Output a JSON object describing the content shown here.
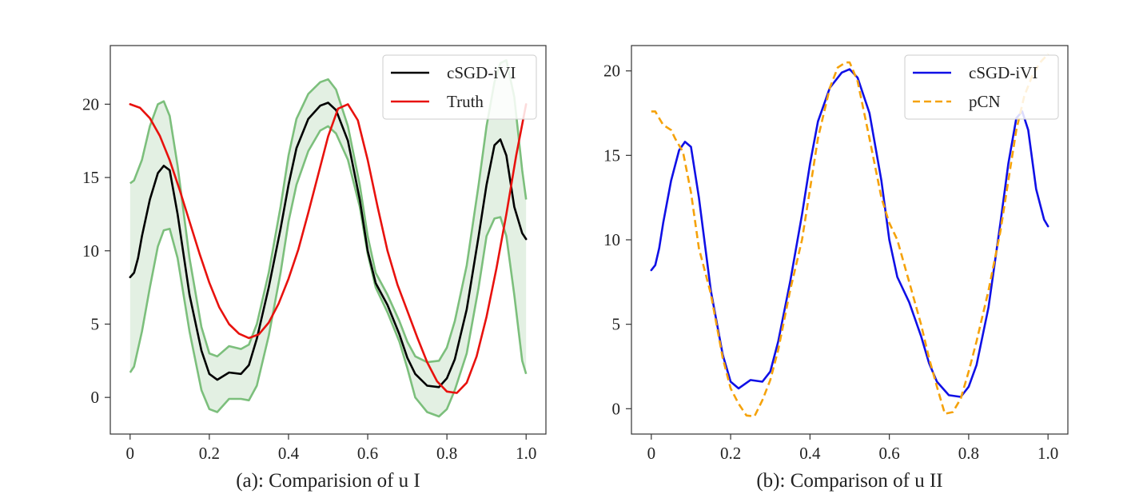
{
  "chart_data": [
    {
      "type": "line",
      "caption": "(a): Comparision of u I",
      "xlim": [
        -0.05,
        1.05
      ],
      "ylim": [
        -2.5,
        24.0
      ],
      "xticks": [
        0,
        0.2,
        0.4,
        0.6,
        0.8,
        1.0
      ],
      "xtick_labels": [
        "0",
        "0.2",
        "0.4",
        "0.6",
        "0.8",
        "1.0"
      ],
      "yticks": [
        0,
        5,
        10,
        15,
        20
      ],
      "ytick_labels": [
        "0",
        "5",
        "10",
        "15",
        "20"
      ],
      "grid": false,
      "legend_position": "top-right",
      "series": [
        {
          "name": "cSGD-iVI",
          "color": "#000000",
          "style": "solid",
          "x": [
            0,
            0.01,
            0.02,
            0.03,
            0.05,
            0.07,
            0.085,
            0.1,
            0.12,
            0.15,
            0.18,
            0.2,
            0.22,
            0.25,
            0.28,
            0.3,
            0.32,
            0.35,
            0.38,
            0.4,
            0.42,
            0.45,
            0.48,
            0.5,
            0.52,
            0.55,
            0.58,
            0.6,
            0.62,
            0.65,
            0.68,
            0.7,
            0.72,
            0.75,
            0.78,
            0.8,
            0.82,
            0.85,
            0.88,
            0.9,
            0.92,
            0.935,
            0.95,
            0.97,
            0.99,
            1.0
          ],
          "y": [
            8.2,
            8.5,
            9.5,
            11.0,
            13.5,
            15.3,
            15.8,
            15.5,
            12.5,
            7.0,
            3.2,
            1.6,
            1.2,
            1.7,
            1.6,
            2.2,
            4.0,
            7.5,
            11.5,
            14.5,
            17.0,
            19.0,
            19.9,
            20.1,
            19.6,
            17.5,
            13.5,
            10.0,
            7.8,
            6.3,
            4.3,
            2.7,
            1.6,
            0.8,
            0.7,
            1.3,
            2.6,
            6.0,
            11.0,
            14.5,
            17.2,
            17.6,
            16.5,
            13.0,
            11.2,
            10.8
          ]
        },
        {
          "name": "Truth",
          "color": "#e8120e",
          "style": "solid",
          "x": [
            0,
            0.025,
            0.05,
            0.075,
            0.1,
            0.125,
            0.15,
            0.175,
            0.2,
            0.225,
            0.25,
            0.275,
            0.3,
            0.325,
            0.35,
            0.375,
            0.4,
            0.425,
            0.45,
            0.475,
            0.5,
            0.525,
            0.55,
            0.575,
            0.6,
            0.625,
            0.65,
            0.675,
            0.7,
            0.725,
            0.75,
            0.775,
            0.8,
            0.825,
            0.85,
            0.875,
            0.9,
            0.925,
            0.95,
            0.975,
            1.0
          ],
          "y": [
            20,
            19.75,
            19.05,
            17.85,
            16.18,
            14.17,
            12.0,
            9.83,
            7.82,
            6.15,
            5.0,
            4.35,
            4.05,
            4.3,
            5.1,
            6.4,
            8.1,
            10.1,
            12.6,
            15.2,
            17.8,
            19.7,
            20.0,
            18.9,
            16.2,
            13.0,
            10.0,
            7.7,
            5.9,
            4.1,
            2.4,
            1.1,
            0.4,
            0.3,
            1.0,
            2.8,
            5.5,
            8.8,
            12.5,
            16.5,
            20.0
          ]
        }
      ],
      "band": {
        "color": "#7cbf7c",
        "fill": "#e3f0e3",
        "x": [
          0,
          0.01,
          0.03,
          0.05,
          0.07,
          0.085,
          0.1,
          0.12,
          0.15,
          0.18,
          0.2,
          0.22,
          0.25,
          0.28,
          0.3,
          0.32,
          0.35,
          0.38,
          0.4,
          0.42,
          0.45,
          0.48,
          0.5,
          0.52,
          0.55,
          0.58,
          0.6,
          0.62,
          0.65,
          0.68,
          0.7,
          0.72,
          0.75,
          0.78,
          0.8,
          0.82,
          0.85,
          0.88,
          0.9,
          0.92,
          0.935,
          0.95,
          0.97,
          0.99,
          1.0
        ],
        "upper": [
          14.6,
          14.8,
          16.2,
          18.5,
          20.0,
          20.2,
          19.2,
          15.8,
          9.5,
          4.8,
          3.0,
          2.8,
          3.5,
          3.3,
          3.6,
          5.0,
          8.5,
          13.0,
          16.5,
          19.0,
          20.7,
          21.5,
          21.7,
          21.0,
          18.5,
          14.5,
          11.0,
          8.5,
          7.0,
          5.2,
          3.8,
          2.8,
          2.4,
          2.5,
          3.4,
          5.2,
          9.0,
          14.5,
          18.5,
          21.5,
          22.8,
          23.0,
          20.5,
          15.5,
          13.5
        ],
        "lower": [
          1.7,
          2.1,
          4.5,
          7.5,
          10.3,
          11.4,
          11.5,
          9.5,
          4.5,
          0.5,
          -0.8,
          -1.0,
          -0.1,
          -0.1,
          -0.2,
          0.8,
          4.2,
          8.5,
          12.0,
          14.5,
          16.8,
          18.2,
          18.5,
          18.0,
          16.2,
          13.0,
          9.8,
          7.5,
          5.8,
          3.8,
          2.0,
          0.0,
          -1.0,
          -1.3,
          -0.8,
          0.5,
          3.0,
          7.5,
          11.0,
          12.2,
          12.3,
          11.0,
          7.0,
          2.5,
          1.6
        ]
      }
    },
    {
      "type": "line",
      "caption": "(b): Comparison of u II",
      "xlim": [
        -0.05,
        1.05
      ],
      "ylim": [
        -1.5,
        21.5
      ],
      "xticks": [
        0,
        0.2,
        0.4,
        0.6,
        0.8,
        1.0
      ],
      "xtick_labels": [
        "0",
        "0.2",
        "0.4",
        "0.6",
        "0.8",
        "1.0"
      ],
      "yticks": [
        0,
        5,
        10,
        15,
        20
      ],
      "ytick_labels": [
        "0",
        "5",
        "10",
        "15",
        "20"
      ],
      "grid": false,
      "legend_position": "top-right",
      "series": [
        {
          "name": "cSGD-iVI",
          "color": "#1010e6",
          "style": "solid",
          "x": [
            0,
            0.01,
            0.02,
            0.03,
            0.05,
            0.07,
            0.085,
            0.1,
            0.12,
            0.15,
            0.18,
            0.2,
            0.22,
            0.25,
            0.28,
            0.3,
            0.32,
            0.35,
            0.38,
            0.4,
            0.42,
            0.45,
            0.48,
            0.5,
            0.52,
            0.55,
            0.58,
            0.6,
            0.62,
            0.65,
            0.68,
            0.7,
            0.72,
            0.75,
            0.78,
            0.8,
            0.82,
            0.85,
            0.88,
            0.9,
            0.92,
            0.935,
            0.95,
            0.97,
            0.99,
            1.0
          ],
          "y": [
            8.2,
            8.5,
            9.5,
            11.0,
            13.5,
            15.3,
            15.8,
            15.5,
            12.5,
            7.0,
            3.2,
            1.6,
            1.2,
            1.7,
            1.6,
            2.2,
            4.0,
            7.5,
            11.5,
            14.5,
            17.0,
            19.0,
            19.9,
            20.1,
            19.6,
            17.5,
            13.5,
            10.0,
            7.8,
            6.3,
            4.3,
            2.7,
            1.6,
            0.8,
            0.7,
            1.3,
            2.6,
            6.0,
            11.0,
            14.5,
            17.2,
            17.6,
            16.5,
            13.0,
            11.2,
            10.8
          ]
        },
        {
          "name": "pCN",
          "color": "#f5a20a",
          "style": "dashed",
          "x": [
            0,
            0.01,
            0.02,
            0.03,
            0.05,
            0.06,
            0.08,
            0.1,
            0.12,
            0.15,
            0.18,
            0.2,
            0.22,
            0.24,
            0.26,
            0.28,
            0.3,
            0.32,
            0.35,
            0.38,
            0.4,
            0.42,
            0.45,
            0.47,
            0.49,
            0.5,
            0.52,
            0.55,
            0.58,
            0.6,
            0.62,
            0.65,
            0.68,
            0.7,
            0.72,
            0.74,
            0.76,
            0.78,
            0.8,
            0.82,
            0.85,
            0.88,
            0.9,
            0.92,
            0.94,
            0.96,
            0.98,
            1.0
          ],
          "y": [
            17.6,
            17.6,
            17.2,
            16.8,
            16.5,
            16.0,
            15.2,
            12.8,
            9.5,
            6.8,
            3.0,
            1.2,
            0.3,
            -0.4,
            -0.45,
            0.5,
            1.7,
            3.5,
            7.0,
            10.0,
            13.0,
            16.0,
            19.0,
            20.2,
            20.5,
            20.5,
            19.4,
            16.0,
            12.5,
            11.0,
            10.0,
            7.5,
            5.0,
            3.0,
            1.3,
            -0.3,
            -0.2,
            0.6,
            2.2,
            4.0,
            7.0,
            10.5,
            13.5,
            16.5,
            18.5,
            19.7,
            20.5,
            21.0
          ]
        }
      ]
    }
  ]
}
